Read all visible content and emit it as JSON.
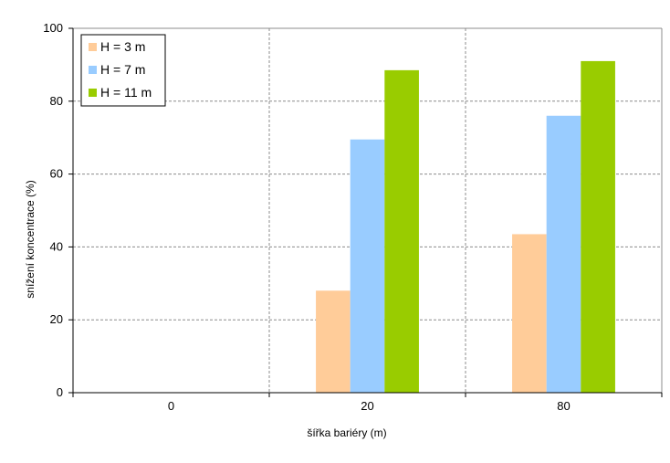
{
  "chart_data": {
    "type": "bar",
    "title": "",
    "xlabel": "šířka bariéry (m)",
    "ylabel": "snížení koncentrace (%)",
    "categories": [
      "0",
      "20",
      "80"
    ],
    "ylim": [
      0,
      100
    ],
    "yticks": [
      0,
      20,
      40,
      60,
      80,
      100
    ],
    "grid": true,
    "legend_position": "top-left",
    "series": [
      {
        "name": "H = 3 m",
        "color": "#ffcc99",
        "values": [
          0,
          28,
          43.5
        ]
      },
      {
        "name": "H = 7 m",
        "color": "#99ccff",
        "values": [
          0,
          69.5,
          76
        ]
      },
      {
        "name": "H = 11 m",
        "color": "#99cc00",
        "values": [
          0,
          88.5,
          91
        ]
      }
    ]
  }
}
